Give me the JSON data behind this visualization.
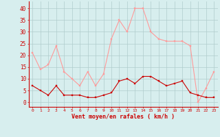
{
  "hours": [
    0,
    1,
    2,
    3,
    4,
    5,
    6,
    7,
    8,
    9,
    10,
    11,
    12,
    13,
    14,
    15,
    16,
    17,
    18,
    19,
    20,
    21,
    22,
    23
  ],
  "wind_mean": [
    7,
    5,
    3,
    7,
    3,
    3,
    3,
    2,
    2,
    3,
    4,
    9,
    10,
    8,
    11,
    11,
    9,
    7,
    8,
    9,
    4,
    3,
    2,
    2
  ],
  "wind_gust": [
    21,
    14,
    16,
    24,
    13,
    10,
    7,
    13,
    7,
    12,
    27,
    35,
    30,
    40,
    40,
    30,
    27,
    26,
    26,
    26,
    24,
    0,
    6,
    13
  ],
  "bg_color": "#d7eeee",
  "grid_color": "#b0cccc",
  "mean_color": "#cc0000",
  "gust_color": "#ff9999",
  "xlabel": "Vent moyen/en rafales ( km/h )",
  "ylabel_ticks": [
    0,
    5,
    10,
    15,
    20,
    25,
    30,
    35,
    40
  ],
  "ylim": [
    -2,
    43
  ],
  "xlim": [
    -0.5,
    23.5
  ]
}
